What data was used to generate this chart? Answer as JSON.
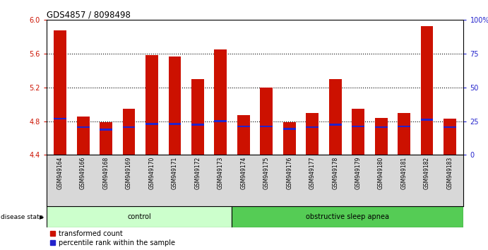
{
  "title": "GDS4857 / 8098498",
  "samples": [
    "GSM949164",
    "GSM949166",
    "GSM949168",
    "GSM949169",
    "GSM949170",
    "GSM949171",
    "GSM949172",
    "GSM949173",
    "GSM949174",
    "GSM949175",
    "GSM949176",
    "GSM949177",
    "GSM949178",
    "GSM949179",
    "GSM949180",
    "GSM949181",
    "GSM949182",
    "GSM949183"
  ],
  "red_values": [
    5.88,
    4.86,
    4.79,
    4.95,
    5.58,
    5.57,
    5.3,
    5.65,
    4.87,
    5.2,
    4.79,
    4.9,
    5.3,
    4.95,
    4.84,
    4.9,
    5.93,
    4.83
  ],
  "blue_values": [
    4.83,
    4.73,
    4.7,
    4.73,
    4.77,
    4.77,
    4.76,
    4.8,
    4.74,
    4.74,
    4.71,
    4.73,
    4.76,
    4.74,
    4.73,
    4.74,
    4.82,
    4.73
  ],
  "group_labels": [
    "control",
    "obstructive sleep apnea"
  ],
  "group_split": 8,
  "group_colors": [
    "#ccffcc",
    "#55cc55"
  ],
  "ylim": [
    4.4,
    6.0
  ],
  "y_ticks_left": [
    4.4,
    4.8,
    5.2,
    5.6,
    6.0
  ],
  "right_yticks": [
    0,
    25,
    50,
    75,
    100
  ],
  "bar_color": "#cc1100",
  "blue_color": "#2222cc",
  "bar_width": 0.55,
  "background_color": "#ffffff",
  "legend_items": [
    "transformed count",
    "percentile rank within the sample"
  ],
  "xlabel_bg": "#d8d8d8"
}
